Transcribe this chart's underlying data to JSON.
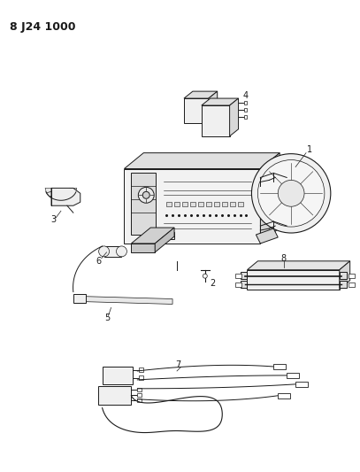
{
  "title": "8 J24 1000",
  "bg_color": "#ffffff",
  "line_color": "#1a1a1a",
  "title_fontsize": 9,
  "title_fontweight": "bold",
  "fig_width": 4.07,
  "fig_height": 5.33,
  "dpi": 100
}
